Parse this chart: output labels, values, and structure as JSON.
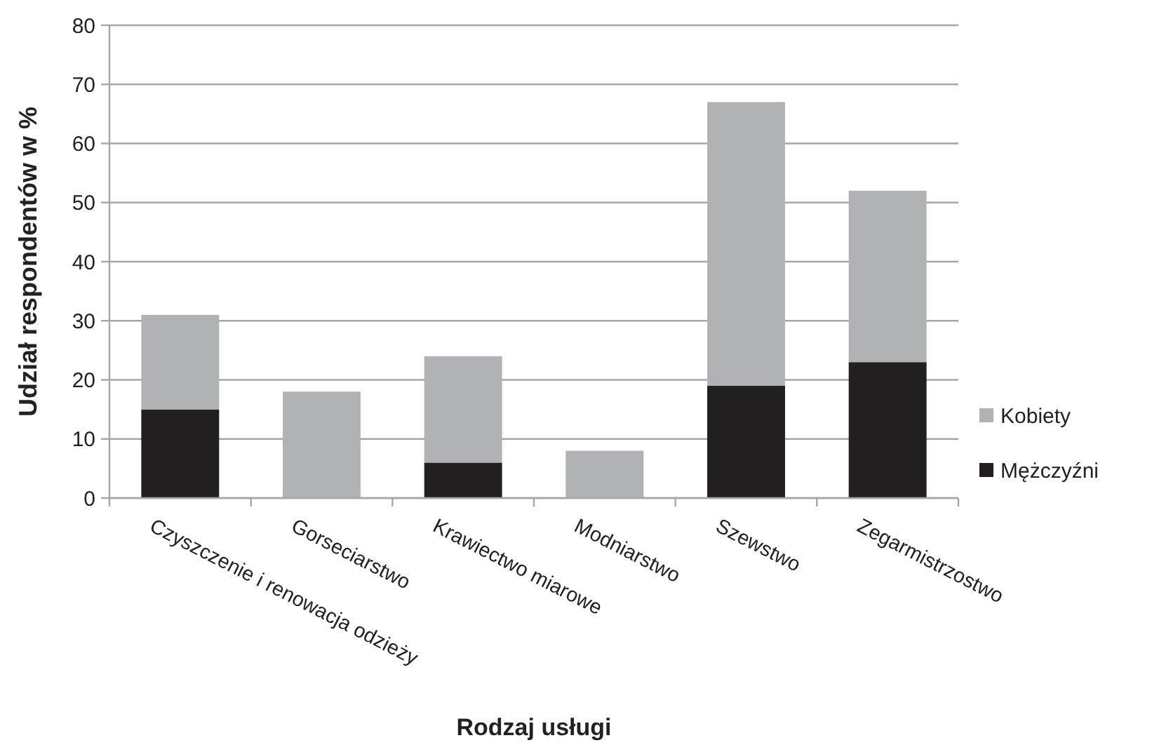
{
  "chart_data": {
    "type": "bar",
    "stacked": true,
    "xlabel": "Rodzaj usługi",
    "ylabel": "Udział respondentów w %",
    "categories": [
      "Czyszczenie i renowacja odzieży",
      "Gorseciarstwo",
      "Krawiectwo miarowe",
      "Modniarstwo",
      "Szewstwo",
      "Zegarmistrzostwo"
    ],
    "series": [
      {
        "name": "Mężczyźni",
        "color": "#231f20",
        "values": [
          15,
          null,
          6,
          null,
          19,
          23
        ]
      },
      {
        "name": "Kobiety",
        "color": "#b1b2b5",
        "values": [
          16,
          18,
          18,
          8,
          48,
          29
        ]
      }
    ],
    "ylim": [
      0,
      80
    ],
    "yticks": [
      0,
      10,
      20,
      30,
      40,
      50,
      60,
      70,
      80
    ],
    "grid": "y",
    "legend": "right"
  }
}
